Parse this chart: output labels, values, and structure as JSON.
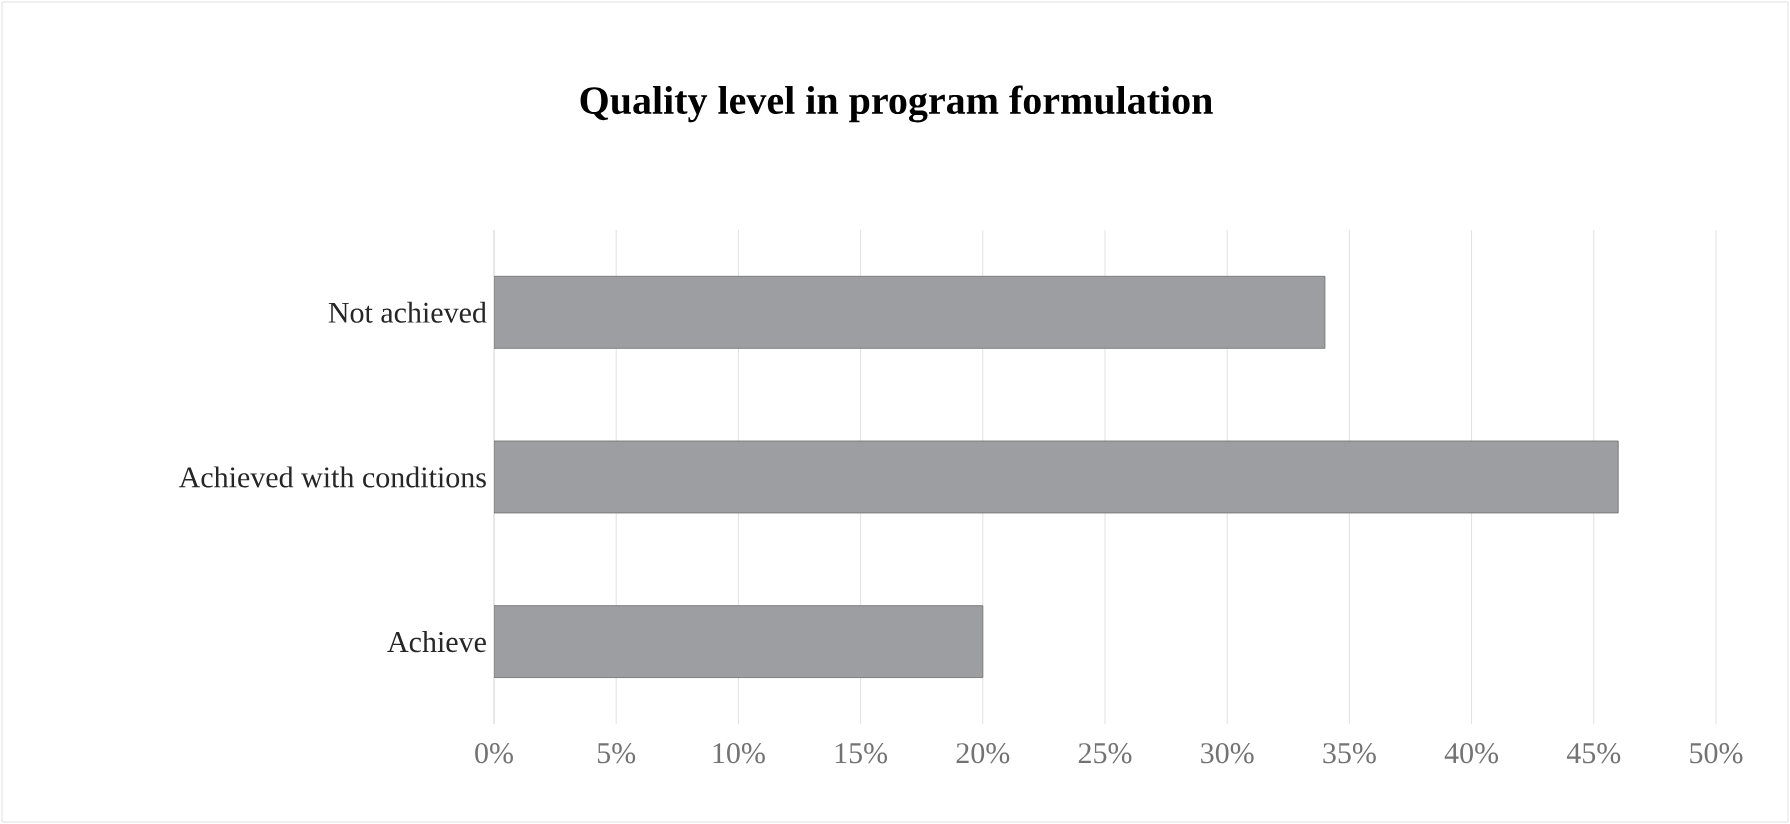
{
  "chart_data": {
    "type": "bar",
    "orientation": "horizontal",
    "title": "Quality level in program formulation",
    "categories": [
      "Not achieved",
      "Achieved with conditions",
      "Achieve"
    ],
    "values": [
      34,
      46,
      20
    ],
    "color": "#9d9ea2",
    "xlim": [
      0,
      50
    ],
    "xticks": [
      {
        "value": 0,
        "label": "0%"
      },
      {
        "value": 5,
        "label": "5%"
      },
      {
        "value": 10,
        "label": "10%"
      },
      {
        "value": 15,
        "label": "15%"
      },
      {
        "value": 20,
        "label": "20%"
      },
      {
        "value": 25,
        "label": "25%"
      },
      {
        "value": 30,
        "label": "30%"
      },
      {
        "value": 35,
        "label": "35%"
      },
      {
        "value": 40,
        "label": "40%"
      },
      {
        "value": 45,
        "label": "45%"
      },
      {
        "value": 50,
        "label": "50%"
      }
    ],
    "grid": "x"
  }
}
